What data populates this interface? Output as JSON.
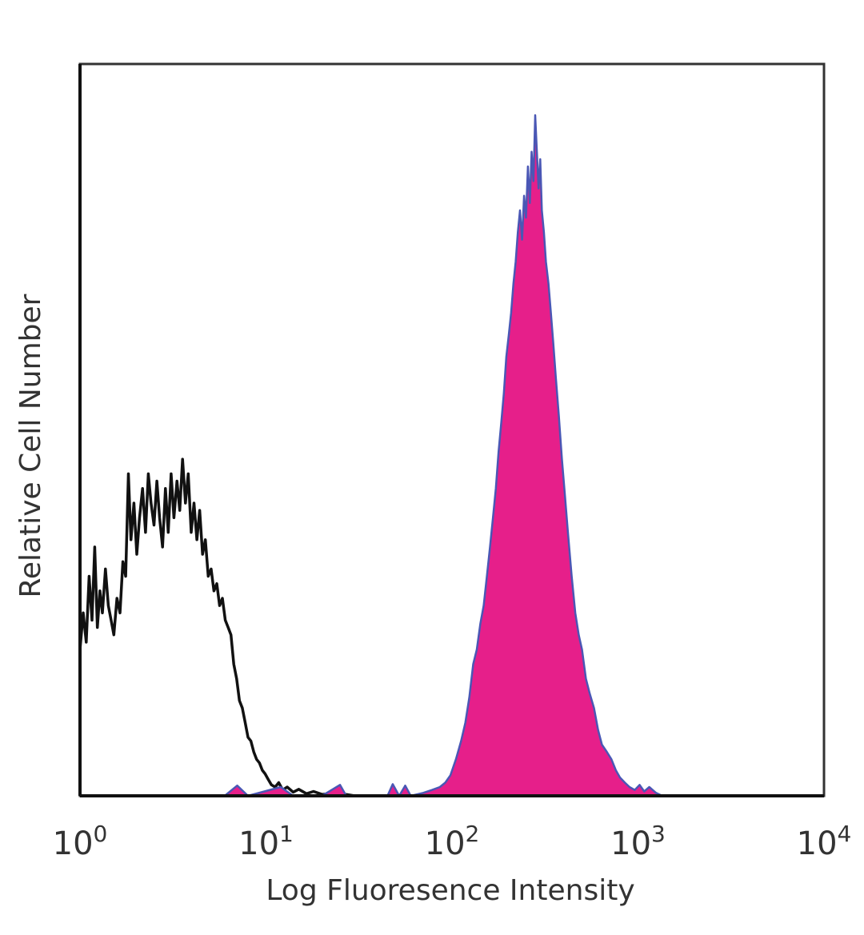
{
  "chart_data": {
    "type": "area",
    "xscale": "log",
    "xlim": [
      1,
      10000
    ],
    "ylim": [
      0,
      1
    ],
    "xlabel": "Log Fluoresence Intensity",
    "ylabel": "Relative Cell Number",
    "xticks": [
      {
        "base": "10",
        "exp": "0",
        "value": 1
      },
      {
        "base": "10",
        "exp": "1",
        "value": 10
      },
      {
        "base": "10",
        "exp": "2",
        "value": 100
      },
      {
        "base": "10",
        "exp": "3",
        "value": 1000
      },
      {
        "base": "10",
        "exp": "4",
        "value": 10000
      }
    ],
    "grid": false,
    "series": [
      {
        "style": "outline",
        "color": "#111111",
        "points": [
          [
            1.0,
            0.2
          ],
          [
            1.04,
            0.25
          ],
          [
            1.08,
            0.21
          ],
          [
            1.12,
            0.3
          ],
          [
            1.16,
            0.24
          ],
          [
            1.2,
            0.34
          ],
          [
            1.24,
            0.23
          ],
          [
            1.28,
            0.28
          ],
          [
            1.32,
            0.25
          ],
          [
            1.37,
            0.31
          ],
          [
            1.42,
            0.26
          ],
          [
            1.47,
            0.24
          ],
          [
            1.52,
            0.22
          ],
          [
            1.58,
            0.27
          ],
          [
            1.64,
            0.25
          ],
          [
            1.7,
            0.32
          ],
          [
            1.76,
            0.3
          ],
          [
            1.82,
            0.44
          ],
          [
            1.88,
            0.35
          ],
          [
            1.95,
            0.4
          ],
          [
            2.02,
            0.33
          ],
          [
            2.09,
            0.38
          ],
          [
            2.17,
            0.42
          ],
          [
            2.25,
            0.36
          ],
          [
            2.33,
            0.44
          ],
          [
            2.41,
            0.4
          ],
          [
            2.5,
            0.37
          ],
          [
            2.59,
            0.43
          ],
          [
            2.68,
            0.38
          ],
          [
            2.78,
            0.34
          ],
          [
            2.88,
            0.42
          ],
          [
            2.98,
            0.36
          ],
          [
            3.09,
            0.44
          ],
          [
            3.2,
            0.38
          ],
          [
            3.32,
            0.43
          ],
          [
            3.44,
            0.39
          ],
          [
            3.56,
            0.46
          ],
          [
            3.69,
            0.4
          ],
          [
            3.82,
            0.44
          ],
          [
            3.96,
            0.36
          ],
          [
            4.1,
            0.4
          ],
          [
            4.25,
            0.35
          ],
          [
            4.4,
            0.39
          ],
          [
            4.56,
            0.33
          ],
          [
            4.72,
            0.35
          ],
          [
            4.89,
            0.3
          ],
          [
            5.07,
            0.31
          ],
          [
            5.25,
            0.28
          ],
          [
            5.44,
            0.29
          ],
          [
            5.63,
            0.26
          ],
          [
            5.83,
            0.27
          ],
          [
            6.04,
            0.24
          ],
          [
            6.26,
            0.23
          ],
          [
            6.48,
            0.22
          ],
          [
            6.71,
            0.18
          ],
          [
            6.95,
            0.16
          ],
          [
            7.2,
            0.13
          ],
          [
            7.46,
            0.12
          ],
          [
            7.73,
            0.1
          ],
          [
            8.0,
            0.08
          ],
          [
            8.29,
            0.075
          ],
          [
            8.59,
            0.06
          ],
          [
            8.9,
            0.05
          ],
          [
            9.22,
            0.045
          ],
          [
            9.55,
            0.035
          ],
          [
            9.89,
            0.03
          ],
          [
            10.3,
            0.022
          ],
          [
            10.7,
            0.015
          ],
          [
            11.2,
            0.012
          ],
          [
            11.7,
            0.018
          ],
          [
            12.3,
            0.008
          ],
          [
            13.0,
            0.012
          ],
          [
            14.0,
            0.005
          ],
          [
            15.0,
            0.009
          ],
          [
            16.5,
            0.003
          ],
          [
            18.0,
            0.006
          ],
          [
            20.0,
            0.002
          ],
          [
            24.0,
            0.004
          ],
          [
            30.0,
            0.0
          ],
          [
            50.0,
            0.0
          ],
          [
            100.0,
            0.0
          ],
          [
            1000.0,
            0.0
          ],
          [
            10000.0,
            0.0
          ]
        ]
      },
      {
        "style": "filled",
        "color": "#e61f8a",
        "outline_color": "#4a57b5",
        "points": [
          [
            6.0,
            0.0
          ],
          [
            7.0,
            0.014
          ],
          [
            8.0,
            0.0
          ],
          [
            12.0,
            0.012
          ],
          [
            14.0,
            0.0
          ],
          [
            20.0,
            0.0
          ],
          [
            25.0,
            0.015
          ],
          [
            27.0,
            0.0
          ],
          [
            45.0,
            0.0
          ],
          [
            48.0,
            0.016
          ],
          [
            52.0,
            0.0
          ],
          [
            56.0,
            0.014
          ],
          [
            60.0,
            0.0
          ],
          [
            70.0,
            0.004
          ],
          [
            78.0,
            0.008
          ],
          [
            86.0,
            0.012
          ],
          [
            92.0,
            0.018
          ],
          [
            98.0,
            0.028
          ],
          [
            105.0,
            0.05
          ],
          [
            112.0,
            0.075
          ],
          [
            118.0,
            0.1
          ],
          [
            124.0,
            0.135
          ],
          [
            130.0,
            0.18
          ],
          [
            136.0,
            0.2
          ],
          [
            142.0,
            0.235
          ],
          [
            148.0,
            0.26
          ],
          [
            154.0,
            0.3
          ],
          [
            160.0,
            0.34
          ],
          [
            166.0,
            0.38
          ],
          [
            172.0,
            0.42
          ],
          [
            178.0,
            0.47
          ],
          [
            184.0,
            0.51
          ],
          [
            190.0,
            0.55
          ],
          [
            196.0,
            0.6
          ],
          [
            202.0,
            0.63
          ],
          [
            208.0,
            0.66
          ],
          [
            214.0,
            0.7
          ],
          [
            220.0,
            0.73
          ],
          [
            226.0,
            0.77
          ],
          [
            232.0,
            0.8
          ],
          [
            238.0,
            0.76
          ],
          [
            244.0,
            0.82
          ],
          [
            250.0,
            0.79
          ],
          [
            256.0,
            0.86
          ],
          [
            262.0,
            0.81
          ],
          [
            268.0,
            0.88
          ],
          [
            274.0,
            0.84
          ],
          [
            280.0,
            0.93
          ],
          [
            286.0,
            0.88
          ],
          [
            292.0,
            0.83
          ],
          [
            298.0,
            0.87
          ],
          [
            304.0,
            0.8
          ],
          [
            312.0,
            0.77
          ],
          [
            320.0,
            0.73
          ],
          [
            330.0,
            0.7
          ],
          [
            340.0,
            0.66
          ],
          [
            350.0,
            0.62
          ],
          [
            362.0,
            0.57
          ],
          [
            375.0,
            0.52
          ],
          [
            390.0,
            0.46
          ],
          [
            405.0,
            0.41
          ],
          [
            420.0,
            0.36
          ],
          [
            440.0,
            0.3
          ],
          [
            460.0,
            0.25
          ],
          [
            480.0,
            0.22
          ],
          [
            500.0,
            0.2
          ],
          [
            525.0,
            0.16
          ],
          [
            550.0,
            0.14
          ],
          [
            580.0,
            0.12
          ],
          [
            610.0,
            0.09
          ],
          [
            640.0,
            0.07
          ],
          [
            680.0,
            0.06
          ],
          [
            720.0,
            0.05
          ],
          [
            760.0,
            0.035
          ],
          [
            800.0,
            0.025
          ],
          [
            850.0,
            0.018
          ],
          [
            900.0,
            0.012
          ],
          [
            960.0,
            0.008
          ],
          [
            1020.0,
            0.015
          ],
          [
            1080.0,
            0.006
          ],
          [
            1150.0,
            0.012
          ],
          [
            1250.0,
            0.004
          ],
          [
            1350.0,
            0.0
          ],
          [
            10000.0,
            0.0
          ]
        ]
      }
    ]
  }
}
